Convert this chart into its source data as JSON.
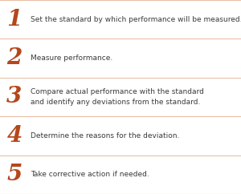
{
  "background_color": "#ffffff",
  "number_color": "#b5471b",
  "text_color": "#3a3a3a",
  "line_color": "#e8c0a8",
  "steps": [
    {
      "number": "1",
      "text": "Set the standard by which performance will be measured."
    },
    {
      "number": "2",
      "text": "Measure performance."
    },
    {
      "number": "3",
      "text": "Compare actual performance with the standard\nand identify any deviations from the standard."
    },
    {
      "number": "4",
      "text": "Determine the reasons for the deviation."
    },
    {
      "number": "5",
      "text": "Take corrective action if needed."
    }
  ],
  "number_fontsize": 20,
  "text_fontsize": 6.5,
  "fig_width": 3.0,
  "fig_height": 2.42,
  "dpi": 100
}
